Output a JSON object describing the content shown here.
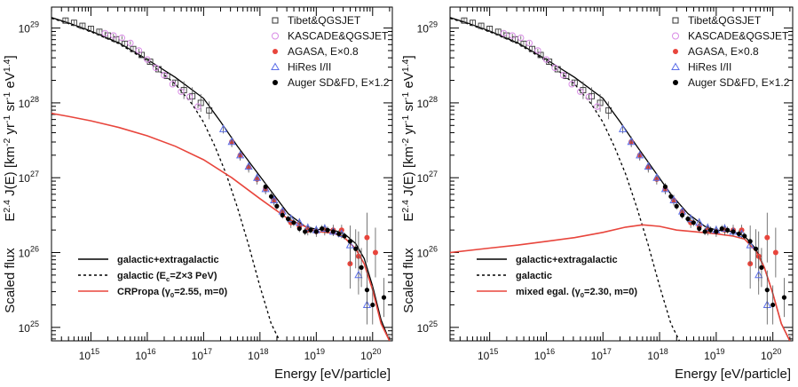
{
  "chart_data": [
    {
      "type": "line",
      "title": "",
      "xlabel": "Energy [eV/particle]",
      "ylabel_prefix": "Scaled flux",
      "ylabel": "E^{2.4} J(E) [km^{-2} yr^{-1} sr^{-1} eV^{1.4}]",
      "xscale": "log",
      "yscale": "log",
      "xlim_log10": [
        14.3,
        20.35
      ],
      "ylim_log10": [
        24.82,
        29.28
      ],
      "x_ticks": [
        {
          "b": "10",
          "e": "15"
        },
        {
          "b": "10",
          "e": "16"
        },
        {
          "b": "10",
          "e": "17"
        },
        {
          "b": "10",
          "e": "18"
        },
        {
          "b": "10",
          "e": "19"
        },
        {
          "b": "10",
          "e": "20"
        }
      ],
      "y_ticks": [
        {
          "b": "10",
          "e": "25"
        },
        {
          "b": "10",
          "e": "26"
        },
        {
          "b": "10",
          "e": "27"
        },
        {
          "b": "10",
          "e": "28"
        },
        {
          "b": "10",
          "e": "29"
        }
      ],
      "legend_data": [
        {
          "label": "Tibet&QGSJET",
          "marker": "open-square",
          "color": "#333333"
        },
        {
          "label": "KASCADE&QGSJET",
          "marker": "open-circle",
          "color": "#d98ce6"
        },
        {
          "label": "AGASA, E×0.8",
          "marker": "filled-circle",
          "color": "#e8453c"
        },
        {
          "label": "HiRes I/II",
          "marker": "open-triangle",
          "color": "#5b6ee8"
        },
        {
          "label": "Auger SD&FD, E×1.2",
          "marker": "filled-circle",
          "color": "#000000"
        }
      ],
      "legend_lines": [
        {
          "label": "galactic+extragalactic",
          "style": "solid",
          "color": "#000000"
        },
        {
          "label": "galactic (E_c=Z×3 PeV)",
          "style": "dashed",
          "color": "#000000"
        },
        {
          "label": "CRPropa (γ_0=2.55, m=0)",
          "style": "solid",
          "color": "#e8453c"
        }
      ],
      "series": [
        {
          "name": "galactic+extragalactic",
          "style": "solid",
          "color": "#000000",
          "x": [
            14.3,
            14.6,
            15.0,
            15.5,
            16.0,
            16.5,
            17.0,
            17.3,
            17.6,
            17.9,
            18.2,
            18.5,
            18.8,
            19.0,
            19.3,
            19.5,
            19.7,
            19.85,
            20.0,
            20.15,
            20.3
          ],
          "y": [
            29.14,
            29.07,
            28.96,
            28.8,
            28.58,
            28.34,
            28.06,
            27.75,
            27.42,
            27.12,
            26.82,
            26.52,
            26.35,
            26.31,
            26.3,
            26.25,
            26.12,
            25.92,
            25.55,
            25.1,
            24.82
          ]
        },
        {
          "name": "galactic (E_c=Z×3 PeV)",
          "style": "dashed",
          "color": "#000000",
          "x": [
            14.3,
            14.6,
            15.0,
            15.5,
            16.0,
            16.5,
            16.8,
            17.0,
            17.2,
            17.4,
            17.6,
            17.8,
            18.0,
            18.2,
            18.35
          ],
          "y": [
            29.13,
            29.06,
            28.95,
            28.79,
            28.56,
            28.25,
            27.98,
            27.74,
            27.42,
            27.05,
            26.6,
            26.1,
            25.55,
            25.05,
            24.82
          ]
        },
        {
          "name": "CRPropa (γ_0=2.55, m=0)",
          "style": "solid",
          "color": "#e8453c",
          "x": [
            14.3,
            14.6,
            15.0,
            15.5,
            16.0,
            16.5,
            17.0,
            17.5,
            18.0,
            18.5,
            19.0,
            19.3,
            19.5,
            19.7,
            19.85,
            20.0,
            20.15,
            20.3
          ],
          "y": [
            27.86,
            27.82,
            27.76,
            27.67,
            27.56,
            27.42,
            27.24,
            27.0,
            26.72,
            26.45,
            26.28,
            26.26,
            26.2,
            26.05,
            25.85,
            25.5,
            25.05,
            24.82
          ]
        }
      ],
      "measurements": {
        "tibet": {
          "x": [
            14.55,
            14.7,
            14.85,
            15.0,
            15.15,
            15.3,
            15.45,
            15.6,
            15.75,
            15.9,
            16.05,
            16.2,
            16.35,
            16.5,
            16.65,
            16.8,
            16.95,
            17.1
          ],
          "y": [
            29.1,
            29.07,
            29.03,
            28.99,
            28.95,
            28.9,
            28.85,
            28.79,
            28.72,
            28.64,
            28.55,
            28.45,
            28.36,
            28.27,
            28.17,
            28.09,
            28.0,
            27.9
          ]
        },
        "kascade": {
          "x": [
            15.25,
            15.4,
            15.55,
            15.7,
            15.85,
            16.0,
            16.15,
            16.3,
            16.45,
            16.6,
            16.75,
            16.9
          ],
          "y": [
            28.93,
            28.9,
            28.87,
            28.8,
            28.7,
            28.58,
            28.47,
            28.37,
            28.25,
            28.15,
            28.08,
            27.95
          ]
        },
        "agasa": {
          "x": [
            17.5,
            17.65,
            17.8,
            17.95,
            18.1,
            18.25,
            18.4,
            18.55,
            18.7,
            18.85,
            19.0,
            19.15,
            19.3,
            19.45,
            19.6,
            19.75,
            19.9,
            20.05
          ],
          "y": [
            27.48,
            27.3,
            27.14,
            26.98,
            26.85,
            26.7,
            26.55,
            26.4,
            26.35,
            26.3,
            26.28,
            26.3,
            26.3,
            26.3,
            25.85,
            25.95,
            26.2,
            26.0
          ]
        },
        "hires": {
          "x": [
            17.35,
            17.5,
            17.65,
            17.8,
            17.95,
            18.1,
            18.25,
            18.4,
            18.55,
            18.7,
            18.85,
            19.0,
            19.15,
            19.3,
            19.45,
            19.6,
            19.75,
            19.9
          ],
          "y": [
            27.65,
            27.48,
            27.3,
            27.15,
            27.0,
            26.85,
            26.7,
            26.55,
            26.45,
            26.4,
            26.33,
            26.3,
            26.32,
            26.28,
            26.25,
            26.1,
            25.7,
            25.3
          ]
        },
        "auger": {
          "x": [
            18.1,
            18.2,
            18.3,
            18.4,
            18.5,
            18.6,
            18.7,
            18.8,
            18.9,
            19.0,
            19.1,
            19.2,
            19.3,
            19.4,
            19.5,
            19.6,
            19.7,
            19.8,
            19.9,
            20.0,
            20.2
          ],
          "y": [
            26.88,
            26.75,
            26.62,
            26.5,
            26.45,
            26.4,
            26.32,
            26.28,
            26.3,
            26.28,
            26.32,
            26.3,
            26.28,
            26.25,
            26.22,
            26.15,
            26.05,
            25.8,
            25.5,
            25.3,
            25.4
          ]
        }
      }
    },
    {
      "type": "line",
      "title": "",
      "xlabel": "Energy [eV/particle]",
      "ylabel_prefix": "Scaled flux",
      "ylabel": "E^{2.4} J(E) [km^{-2} yr^{-1} sr^{-1} eV^{1.4}]",
      "xscale": "log",
      "yscale": "log",
      "xlim_log10": [
        14.3,
        20.35
      ],
      "ylim_log10": [
        24.82,
        29.28
      ],
      "x_ticks": [
        {
          "b": "10",
          "e": "15"
        },
        {
          "b": "10",
          "e": "16"
        },
        {
          "b": "10",
          "e": "17"
        },
        {
          "b": "10",
          "e": "18"
        },
        {
          "b": "10",
          "e": "19"
        },
        {
          "b": "10",
          "e": "20"
        }
      ],
      "y_ticks": [
        {
          "b": "10",
          "e": "25"
        },
        {
          "b": "10",
          "e": "26"
        },
        {
          "b": "10",
          "e": "27"
        },
        {
          "b": "10",
          "e": "28"
        },
        {
          "b": "10",
          "e": "29"
        }
      ],
      "legend_data": [
        {
          "label": "Tibet&QGSJET",
          "marker": "open-square",
          "color": "#333333"
        },
        {
          "label": "KASCADE&QGSJET",
          "marker": "open-circle",
          "color": "#d98ce6"
        },
        {
          "label": "AGASA, E×0.8",
          "marker": "filled-circle",
          "color": "#e8453c"
        },
        {
          "label": "HiRes I/II",
          "marker": "open-triangle",
          "color": "#5b6ee8"
        },
        {
          "label": "Auger SD&FD, E×1.2",
          "marker": "filled-circle",
          "color": "#000000"
        }
      ],
      "legend_lines": [
        {
          "label": "galactic+extragalactic",
          "style": "solid",
          "color": "#000000"
        },
        {
          "label": "galactic",
          "style": "dashed",
          "color": "#000000"
        },
        {
          "label": "mixed egal. (γ_0=2.30, m=0)",
          "style": "solid",
          "color": "#e8453c"
        }
      ],
      "series": [
        {
          "name": "galactic+extragalactic",
          "style": "solid",
          "color": "#000000",
          "x": [
            14.3,
            14.6,
            15.0,
            15.5,
            16.0,
            16.5,
            17.0,
            17.3,
            17.6,
            17.9,
            18.2,
            18.5,
            18.8,
            19.0,
            19.3,
            19.5,
            19.7,
            19.85,
            20.0,
            20.15,
            20.3
          ],
          "y": [
            29.14,
            29.07,
            28.96,
            28.8,
            28.58,
            28.34,
            28.06,
            27.75,
            27.42,
            27.1,
            26.78,
            26.52,
            26.35,
            26.3,
            26.28,
            26.22,
            26.05,
            25.8,
            25.45,
            25.05,
            24.82
          ]
        },
        {
          "name": "galactic",
          "style": "dashed",
          "color": "#000000",
          "x": [
            14.3,
            14.6,
            15.0,
            15.5,
            16.0,
            16.5,
            16.8,
            17.0,
            17.2,
            17.4,
            17.6,
            17.8,
            18.0,
            18.2,
            18.35
          ],
          "y": [
            29.13,
            29.06,
            28.95,
            28.79,
            28.56,
            28.25,
            27.98,
            27.74,
            27.42,
            27.05,
            26.6,
            26.1,
            25.55,
            25.05,
            24.82
          ]
        },
        {
          "name": "mixed egal. (γ_0=2.30, m=0)",
          "style": "solid",
          "color": "#e8453c",
          "x": [
            14.3,
            15.0,
            15.5,
            16.0,
            16.5,
            17.0,
            17.4,
            17.7,
            18.0,
            18.3,
            18.6,
            19.0,
            19.3,
            19.5,
            19.7,
            19.85,
            20.0,
            20.15,
            20.3
          ],
          "y": [
            26.0,
            26.06,
            26.1,
            26.15,
            26.2,
            26.27,
            26.34,
            26.37,
            26.35,
            26.3,
            26.28,
            26.25,
            26.22,
            26.18,
            26.02,
            25.8,
            25.45,
            25.05,
            24.82
          ]
        }
      ],
      "measurements": {
        "tibet": {
          "x": [
            14.55,
            14.7,
            14.85,
            15.0,
            15.15,
            15.3,
            15.45,
            15.6,
            15.75,
            15.9,
            16.05,
            16.2,
            16.35,
            16.5,
            16.65,
            16.8,
            16.95,
            17.1
          ],
          "y": [
            29.1,
            29.07,
            29.03,
            28.99,
            28.95,
            28.9,
            28.85,
            28.79,
            28.72,
            28.64,
            28.55,
            28.45,
            28.36,
            28.27,
            28.17,
            28.09,
            28.0,
            27.9
          ]
        },
        "kascade": {
          "x": [
            15.25,
            15.4,
            15.55,
            15.7,
            15.85,
            16.0,
            16.15,
            16.3,
            16.45,
            16.6,
            16.75,
            16.9
          ],
          "y": [
            28.93,
            28.9,
            28.87,
            28.8,
            28.7,
            28.58,
            28.47,
            28.37,
            28.25,
            28.15,
            28.08,
            27.95
          ]
        },
        "agasa": {
          "x": [
            17.5,
            17.65,
            17.8,
            17.95,
            18.1,
            18.25,
            18.4,
            18.55,
            18.7,
            18.85,
            19.0,
            19.15,
            19.3,
            19.45,
            19.6,
            19.75,
            19.9,
            20.05
          ],
          "y": [
            27.48,
            27.3,
            27.14,
            26.98,
            26.85,
            26.7,
            26.55,
            26.4,
            26.35,
            26.3,
            26.28,
            26.3,
            26.3,
            26.3,
            25.85,
            25.95,
            26.2,
            26.0
          ]
        },
        "hires": {
          "x": [
            17.35,
            17.5,
            17.65,
            17.8,
            17.95,
            18.1,
            18.25,
            18.4,
            18.55,
            18.7,
            18.85,
            19.0,
            19.15,
            19.3,
            19.45,
            19.6,
            19.75,
            19.9
          ],
          "y": [
            27.65,
            27.48,
            27.3,
            27.15,
            27.0,
            26.85,
            26.7,
            26.55,
            26.45,
            26.4,
            26.33,
            26.3,
            26.32,
            26.28,
            26.25,
            26.1,
            25.7,
            25.3
          ]
        },
        "auger": {
          "x": [
            18.1,
            18.2,
            18.3,
            18.4,
            18.5,
            18.6,
            18.7,
            18.8,
            18.9,
            19.0,
            19.1,
            19.2,
            19.3,
            19.4,
            19.5,
            19.6,
            19.7,
            19.8,
            19.9,
            20.0,
            20.2
          ],
          "y": [
            26.88,
            26.75,
            26.62,
            26.5,
            26.45,
            26.4,
            26.32,
            26.28,
            26.3,
            26.28,
            26.32,
            26.3,
            26.28,
            26.25,
            26.22,
            26.15,
            26.05,
            25.8,
            25.5,
            25.3,
            25.4
          ]
        }
      }
    }
  ]
}
